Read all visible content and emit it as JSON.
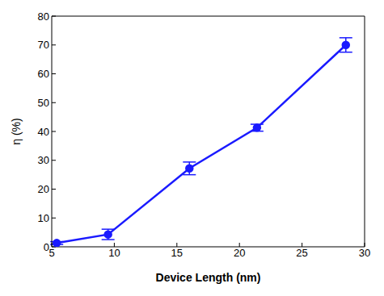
{
  "chart_data": {
    "type": "line",
    "x_label": "Device Length (nm)",
    "y_label": "η (%)",
    "x": [
      5.4,
      9.5,
      16,
      21.4,
      28.5
    ],
    "values": [
      1.3,
      4.3,
      27.2,
      41.3,
      70
    ],
    "errors": [
      0.5,
      1.8,
      2.2,
      1.2,
      2.5
    ],
    "color": "#1a1aff",
    "marker": "circle",
    "line_style": "solid",
    "xlim": [
      5,
      30
    ],
    "xticks": [
      5,
      10,
      15,
      20,
      25,
      30
    ],
    "ylim": [
      0,
      80
    ],
    "yticks": [
      0,
      10,
      20,
      30,
      40,
      50,
      60,
      70,
      80
    ],
    "grid": false
  }
}
